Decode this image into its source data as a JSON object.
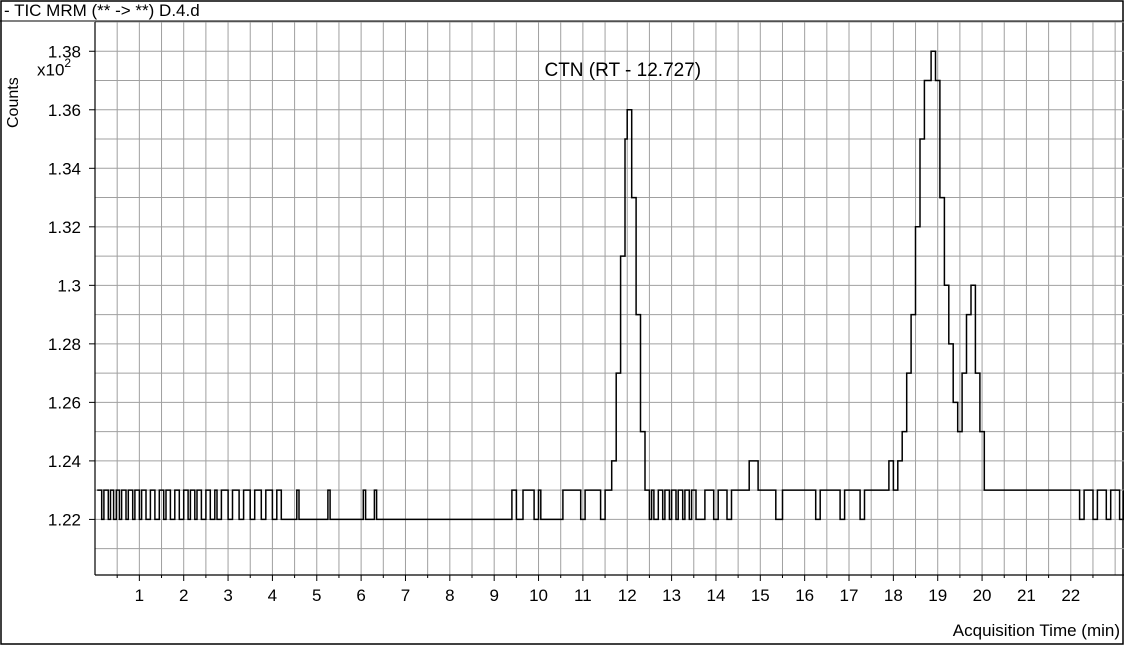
{
  "chart_data": {
    "type": "line",
    "title": "- TIC MRM (** -> **) D.4.d",
    "ylabel": "Counts",
    "y_multiplier": {
      "base": "x10",
      "exponent": "2"
    },
    "xlabel": "Acquisition Time (min)",
    "xlim": [
      0,
      23.2
    ],
    "ylim": [
      1.201,
      1.39
    ],
    "x_ticks": [
      1,
      2,
      3,
      4,
      5,
      6,
      7,
      8,
      9,
      10,
      11,
      12,
      13,
      14,
      15,
      16,
      17,
      18,
      19,
      20,
      21,
      22
    ],
    "y_ticks": [
      1.22,
      1.24,
      1.26,
      1.28,
      1.3,
      1.32,
      1.34,
      1.36,
      1.38
    ],
    "y_tick_labels": [
      "1.22",
      "1.24",
      "1.26",
      "1.28",
      "1.3",
      "1.32",
      "1.34",
      "1.36",
      "1.38"
    ],
    "grid": true,
    "annotations": [
      {
        "text": "CTN (RT - 12.727)",
        "x": 11.9,
        "y": 1.379
      }
    ],
    "series": [
      {
        "color": "#000000",
        "points": [
          [
            0.05,
            1.23
          ],
          [
            0.15,
            1.22
          ],
          [
            0.2,
            1.23
          ],
          [
            0.3,
            1.22
          ],
          [
            0.35,
            1.23
          ],
          [
            0.42,
            1.22
          ],
          [
            0.48,
            1.23
          ],
          [
            0.55,
            1.22
          ],
          [
            0.6,
            1.23
          ],
          [
            0.7,
            1.22
          ],
          [
            0.75,
            1.23
          ],
          [
            0.85,
            1.22
          ],
          [
            0.9,
            1.23
          ],
          [
            1.0,
            1.22
          ],
          [
            1.05,
            1.23
          ],
          [
            1.15,
            1.22
          ],
          [
            1.25,
            1.23
          ],
          [
            1.35,
            1.22
          ],
          [
            1.45,
            1.23
          ],
          [
            1.55,
            1.22
          ],
          [
            1.6,
            1.23
          ],
          [
            1.7,
            1.22
          ],
          [
            1.8,
            1.23
          ],
          [
            1.9,
            1.22
          ],
          [
            2.0,
            1.23
          ],
          [
            2.1,
            1.22
          ],
          [
            2.15,
            1.23
          ],
          [
            2.25,
            1.22
          ],
          [
            2.3,
            1.23
          ],
          [
            2.4,
            1.22
          ],
          [
            2.5,
            1.23
          ],
          [
            2.6,
            1.22
          ],
          [
            2.7,
            1.23
          ],
          [
            2.75,
            1.22
          ],
          [
            2.85,
            1.23
          ],
          [
            3.0,
            1.22
          ],
          [
            3.1,
            1.23
          ],
          [
            3.25,
            1.22
          ],
          [
            3.35,
            1.23
          ],
          [
            3.5,
            1.22
          ],
          [
            3.6,
            1.23
          ],
          [
            3.75,
            1.22
          ],
          [
            3.85,
            1.23
          ],
          [
            4.0,
            1.22
          ],
          [
            4.1,
            1.23
          ],
          [
            4.2,
            1.22
          ],
          [
            4.55,
            1.23
          ],
          [
            4.6,
            1.22
          ],
          [
            5.25,
            1.23
          ],
          [
            5.3,
            1.22
          ],
          [
            6.05,
            1.23
          ],
          [
            6.1,
            1.22
          ],
          [
            6.3,
            1.23
          ],
          [
            6.35,
            1.22
          ],
          [
            9.4,
            1.23
          ],
          [
            9.5,
            1.22
          ],
          [
            9.65,
            1.23
          ],
          [
            9.9,
            1.22
          ],
          [
            10.0,
            1.23
          ],
          [
            10.05,
            1.22
          ],
          [
            10.55,
            1.23
          ],
          [
            10.95,
            1.22
          ],
          [
            11.05,
            1.23
          ],
          [
            11.4,
            1.22
          ],
          [
            11.5,
            1.23
          ],
          [
            11.65,
            1.24
          ],
          [
            11.75,
            1.27
          ],
          [
            11.85,
            1.31
          ],
          [
            11.95,
            1.35
          ],
          [
            12.0,
            1.36
          ],
          [
            12.1,
            1.33
          ],
          [
            12.2,
            1.29
          ],
          [
            12.3,
            1.25
          ],
          [
            12.4,
            1.23
          ],
          [
            12.5,
            1.22
          ],
          [
            12.55,
            1.23
          ],
          [
            12.6,
            1.22
          ],
          [
            12.7,
            1.23
          ],
          [
            12.8,
            1.22
          ],
          [
            12.85,
            1.23
          ],
          [
            12.95,
            1.22
          ],
          [
            13.0,
            1.23
          ],
          [
            13.1,
            1.22
          ],
          [
            13.15,
            1.23
          ],
          [
            13.25,
            1.22
          ],
          [
            13.3,
            1.23
          ],
          [
            13.4,
            1.22
          ],
          [
            13.45,
            1.23
          ],
          [
            13.55,
            1.22
          ],
          [
            13.75,
            1.23
          ],
          [
            13.95,
            1.22
          ],
          [
            14.05,
            1.23
          ],
          [
            14.25,
            1.22
          ],
          [
            14.35,
            1.23
          ],
          [
            14.75,
            1.24
          ],
          [
            14.95,
            1.23
          ],
          [
            15.35,
            1.22
          ],
          [
            15.5,
            1.23
          ],
          [
            16.25,
            1.22
          ],
          [
            16.35,
            1.23
          ],
          [
            16.8,
            1.22
          ],
          [
            16.9,
            1.23
          ],
          [
            17.25,
            1.22
          ],
          [
            17.35,
            1.23
          ],
          [
            17.9,
            1.24
          ],
          [
            18.0,
            1.23
          ],
          [
            18.1,
            1.24
          ],
          [
            18.2,
            1.25
          ],
          [
            18.3,
            1.27
          ],
          [
            18.4,
            1.29
          ],
          [
            18.5,
            1.32
          ],
          [
            18.6,
            1.35
          ],
          [
            18.7,
            1.37
          ],
          [
            18.85,
            1.38
          ],
          [
            18.95,
            1.37
          ],
          [
            19.05,
            1.33
          ],
          [
            19.15,
            1.3
          ],
          [
            19.25,
            1.28
          ],
          [
            19.35,
            1.26
          ],
          [
            19.45,
            1.25
          ],
          [
            19.55,
            1.27
          ],
          [
            19.65,
            1.29
          ],
          [
            19.75,
            1.3
          ],
          [
            19.85,
            1.27
          ],
          [
            19.95,
            1.25
          ],
          [
            20.05,
            1.23
          ],
          [
            22.2,
            1.22
          ],
          [
            22.3,
            1.23
          ],
          [
            22.5,
            1.22
          ],
          [
            22.6,
            1.23
          ],
          [
            22.8,
            1.22
          ],
          [
            22.9,
            1.23
          ],
          [
            23.1,
            1.22
          ],
          [
            23.2,
            1.23
          ]
        ]
      }
    ]
  }
}
